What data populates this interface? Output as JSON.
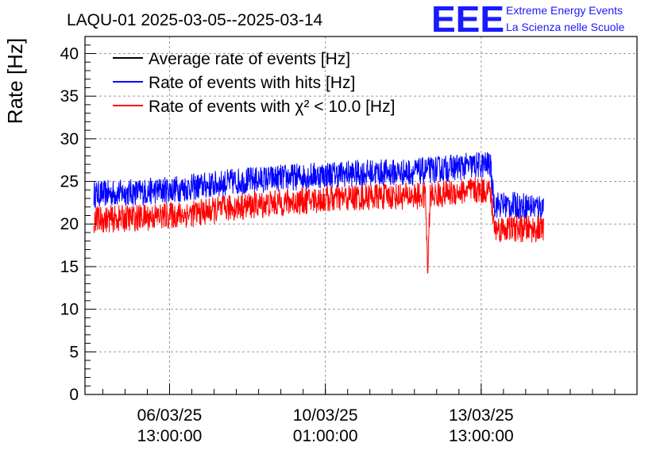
{
  "title": "LAQU-01 2025-03-05--2025-03-14",
  "brand": {
    "logo": "EEE",
    "line1": "Extreme Energy Events",
    "line2": "La Scienza nelle Scuole",
    "color": "#1a1aff"
  },
  "chart_data": {
    "type": "line",
    "title": "LAQU-01 2025-03-05--2025-03-14",
    "xlabel": "",
    "ylabel": "Rate [Hz]",
    "xlim": [
      -1.9,
      10.5
    ],
    "ylim": [
      0,
      42
    ],
    "grid": true,
    "legend_position": "top-left",
    "y_ticks": [
      0,
      5,
      10,
      15,
      20,
      25,
      30,
      35,
      40
    ],
    "x_ticks": [
      {
        "at": 0.0,
        "line1": "06/03/25",
        "line2": "13:00:00"
      },
      {
        "at": 3.5,
        "line1": "10/03/25",
        "line2": "01:00:00"
      },
      {
        "at": 7.0,
        "line1": "13/03/25",
        "line2": "13:00:00"
      }
    ],
    "x_unit": "days since 06/03/25 13:00:00",
    "series": [
      {
        "name": "Average rate of events [Hz]",
        "color": "#000000",
        "x": [],
        "values": []
      },
      {
        "name": "Rate of events with hits [Hz]",
        "color": "#0000ff",
        "x": [
          -1.7,
          -0.5,
          0.5,
          1.5,
          2.5,
          3.5,
          4.5,
          5.5,
          6.5,
          7.2,
          7.3,
          8.4
        ],
        "values": [
          23.5,
          23.8,
          24.3,
          25.0,
          25.4,
          25.8,
          26.0,
          26.1,
          26.7,
          27.0,
          22.3,
          22.0
        ]
      },
      {
        "name": "Rate of events with χ² < 10.0 [Hz]",
        "color": "#ff0000",
        "x": [
          -1.7,
          -0.5,
          0.5,
          1.5,
          2.5,
          3.5,
          4.5,
          5.5,
          5.75,
          5.8,
          5.85,
          6.5,
          7.2,
          7.3,
          8.4
        ],
        "values": [
          20.5,
          20.8,
          21.2,
          22.0,
          22.5,
          22.9,
          23.2,
          23.3,
          23.3,
          14.0,
          23.3,
          23.8,
          24.0,
          19.5,
          19.4
        ]
      }
    ]
  }
}
